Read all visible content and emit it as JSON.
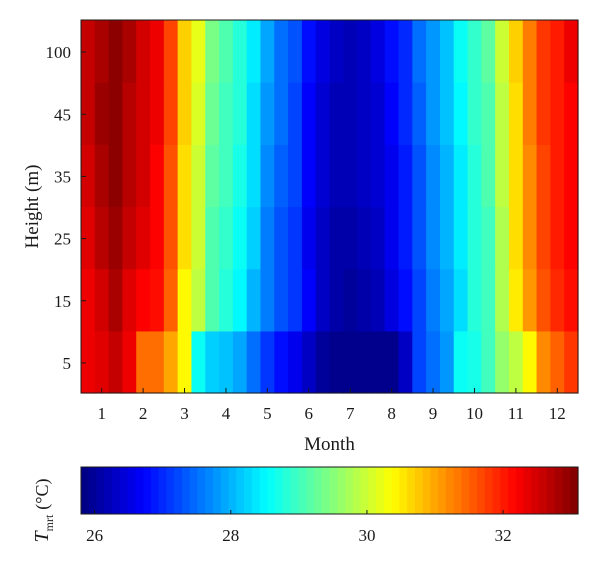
{
  "chart_data": {
    "type": "heatmap",
    "xlabel": "Month",
    "ylabel": "Height (m)",
    "x_ticks": [
      "1",
      "2",
      "3",
      "4",
      "5",
      "6",
      "7",
      "8",
      "9",
      "10",
      "11",
      "12"
    ],
    "y_ticks": [
      "5",
      "15",
      "25",
      "35",
      "45",
      "100"
    ],
    "x_range": [
      0.5,
      12.5
    ],
    "columns_per_month": 3,
    "rows": [
      {
        "height": "100",
        "values": [
          32.3,
          32.4,
          32.6,
          32.3,
          31.4,
          31.4,
          31.0,
          30.4,
          28.6,
          28.2,
          28.1,
          27.9,
          27.5,
          27.1,
          26.8,
          26.6,
          26.3,
          26.0,
          25.9,
          25.9,
          25.9,
          25.9,
          25.9,
          26.3,
          27.2,
          27.5,
          27.8,
          28.6,
          28.7,
          29.0,
          29.6,
          29.9,
          30.4,
          31.2,
          31.5,
          31.8
        ]
      },
      {
        "height": "45",
        "values": [
          32.3,
          32.5,
          32.8,
          32.4,
          32.2,
          32.1,
          31.5,
          30.4,
          29.9,
          29.1,
          28.8,
          28.5,
          28.0,
          27.6,
          27.3,
          27.1,
          26.7,
          26.3,
          26.1,
          26.0,
          26.1,
          26.2,
          26.5,
          26.8,
          27.2,
          27.6,
          27.9,
          28.3,
          28.8,
          29.0,
          29.8,
          30.5,
          31.1,
          31.6,
          31.9,
          32.1
        ]
      },
      {
        "height": "35",
        "values": [
          32.4,
          32.7,
          32.9,
          32.6,
          32.4,
          32.2,
          31.6,
          30.6,
          30.0,
          29.1,
          28.9,
          28.6,
          28.2,
          27.6,
          27.3,
          27.1,
          26.6,
          26.3,
          26.1,
          26.1,
          26.2,
          26.3,
          26.6,
          26.9,
          27.3,
          27.7,
          28.0,
          28.4,
          28.8,
          29.0,
          29.8,
          30.6,
          31.2,
          31.7,
          32.0,
          32.2
        ]
      },
      {
        "height": "25",
        "values": [
          32.5,
          32.8,
          33.0,
          32.7,
          32.5,
          32.2,
          31.6,
          30.6,
          30.0,
          29.2,
          29.0,
          28.7,
          28.3,
          27.7,
          27.4,
          27.2,
          26.7,
          26.4,
          26.2,
          26.2,
          26.3,
          26.4,
          26.6,
          26.9,
          27.3,
          27.7,
          28.0,
          28.4,
          28.8,
          29.1,
          29.9,
          30.6,
          31.2,
          31.7,
          32.0,
          32.2
        ]
      },
      {
        "height": "15",
        "values": [
          32.6,
          32.9,
          33.0,
          32.7,
          32.5,
          32.3,
          31.7,
          30.7,
          30.1,
          29.3,
          29.0,
          28.8,
          28.3,
          27.8,
          27.5,
          27.2,
          26.7,
          26.4,
          26.2,
          26.2,
          26.3,
          26.4,
          26.7,
          27.0,
          27.4,
          27.8,
          28.1,
          28.5,
          28.9,
          29.1,
          29.9,
          30.6,
          31.3,
          31.8,
          32.0,
          32.2
        ]
      },
      {
        "height": "5",
        "values": [
          32.6,
          32.8,
          33.0,
          32.8,
          32.5,
          32.3,
          31.7,
          30.7,
          30.2,
          29.4,
          29.1,
          28.8,
          28.4,
          27.9,
          27.5,
          27.3,
          26.8,
          26.5,
          26.3,
          26.2,
          26.3,
          26.5,
          26.8,
          27.0,
          27.5,
          27.8,
          28.1,
          28.6,
          28.9,
          29.2,
          30.0,
          30.7,
          31.3,
          31.8,
          32.0,
          32.3
        ]
      }
    ],
    "colorbar": {
      "colormap": "jet",
      "range": [
        25.8,
        33.1
      ],
      "ticks": [
        "26",
        "28",
        "30",
        "32"
      ],
      "label_main": "T",
      "label_sub": "mrt",
      "label_unit": "(°C)"
    }
  }
}
